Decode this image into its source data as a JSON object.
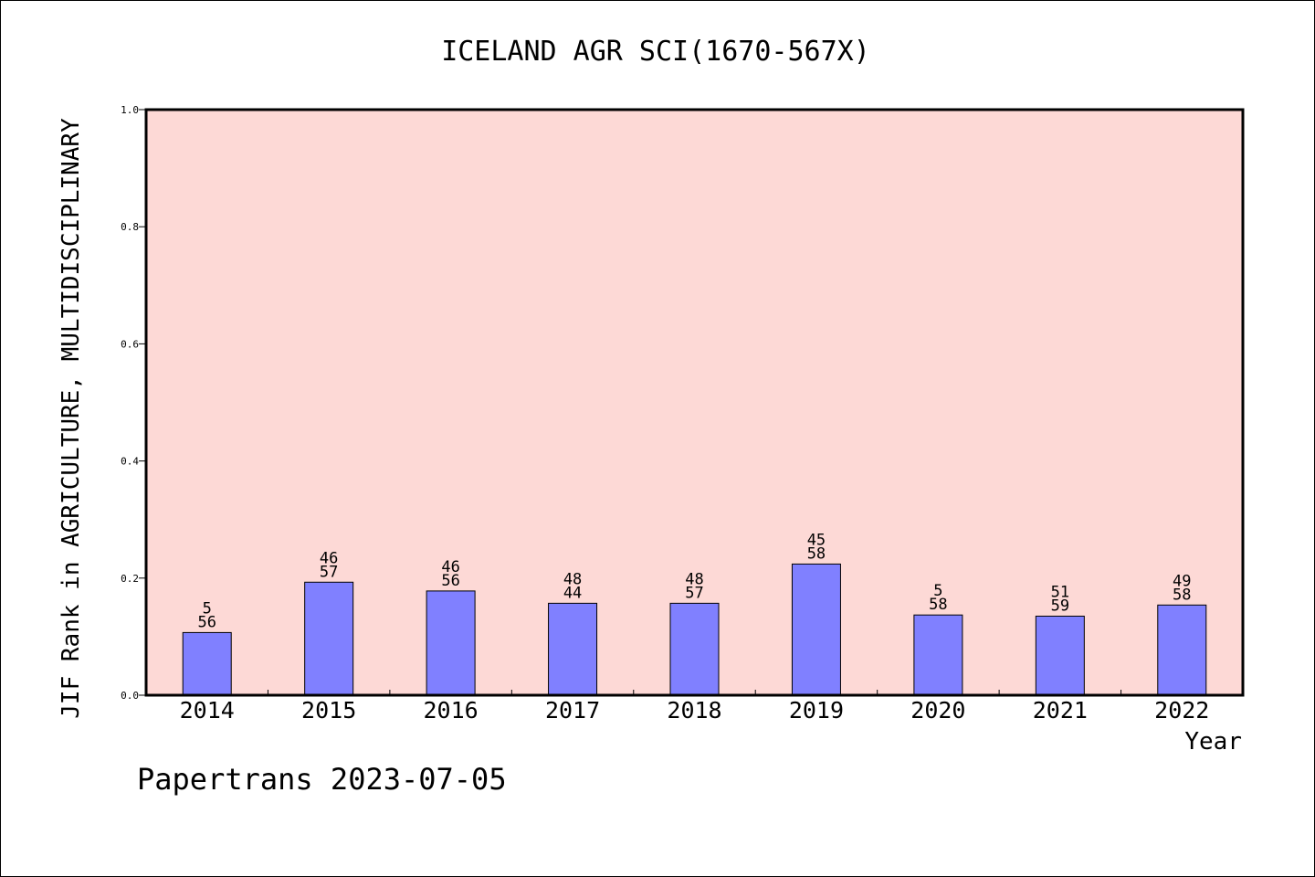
{
  "chart_data": {
    "type": "bar",
    "title": "ICELAND AGR SCI(1670-567X)",
    "xlabel": "Year",
    "ylabel": "JIF Rank in AGRICULTURE, MULTIDISCIPLINARY",
    "ylim": [
      0,
      1.0
    ],
    "yticks": [
      "0.0",
      "0.2",
      "0.4",
      "0.6",
      "0.8",
      "1.0"
    ],
    "categories": [
      "2014",
      "2015",
      "2016",
      "2017",
      "2018",
      "2019",
      "2020",
      "2021",
      "2022"
    ],
    "values": [
      0.107,
      0.193,
      0.178,
      0.157,
      0.157,
      0.224,
      0.137,
      0.135,
      0.154
    ],
    "labels": [
      [
        "5",
        "56"
      ],
      [
        "46",
        "57"
      ],
      [
        "46",
        "56"
      ],
      [
        "48",
        "44"
      ],
      [
        "48",
        "57"
      ],
      [
        "45",
        "58"
      ],
      [
        "5",
        "58"
      ],
      [
        "51",
        "59"
      ],
      [
        "49",
        "58"
      ]
    ],
    "grid": false,
    "colors": {
      "plot_background": "#fdd9d6",
      "bar": "#8080ff"
    }
  },
  "footer": "Papertrans 2023-07-05"
}
